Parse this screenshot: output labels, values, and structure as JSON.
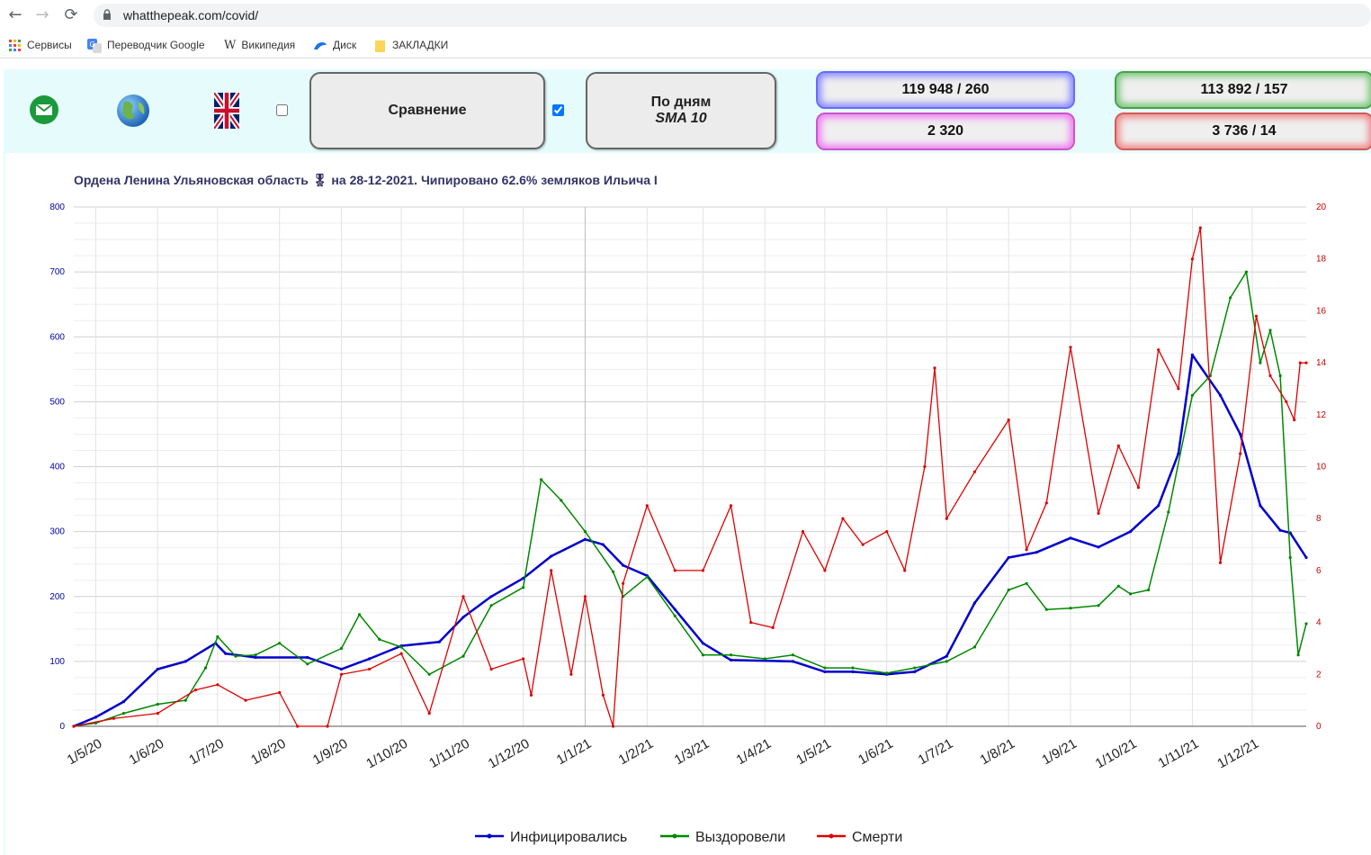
{
  "browser": {
    "url": "whatthepeak.com/covid/",
    "bookmarks": [
      {
        "label": "Сервисы",
        "icon": "apps-grid-icon"
      },
      {
        "label": "Переводчик Google",
        "icon": "google-translate-icon"
      },
      {
        "label": "Википедия",
        "icon": "wikipedia-icon"
      },
      {
        "label": "Диск",
        "icon": "disk-icon"
      },
      {
        "label": "ЗАКЛАДКИ",
        "icon": "folder-icon"
      }
    ]
  },
  "header": {
    "icons": [
      "mail-icon",
      "globe-icon",
      "uk-flag-icon"
    ],
    "compare_checkbox_checked": false,
    "compare_button": "Сравнение",
    "daily_checkbox_checked": true,
    "daily_button_line1": "По дням",
    "daily_button_line2": "SMA 10",
    "stats": {
      "infected": "119 948 / 260",
      "recovered": "113 892 / 157",
      "active": "2 320",
      "deaths": "3 736 / 14"
    },
    "colors": {
      "panel_bg": "#e6fcfc",
      "infected": "#0000cc",
      "recovered": "#008800",
      "deaths": "#dd0000"
    }
  },
  "chart_data": {
    "type": "line",
    "title": "Ордена Ленина Ульяновская область 🎖 на 28-12-2021. Чипировано 62.6% земляков Ильича I",
    "x_range": [
      "2020-04-20",
      "2021-12-28"
    ],
    "x_ticks": [
      "1/5/20",
      "1/6/20",
      "1/7/20",
      "1/8/20",
      "1/9/20",
      "1/10/20",
      "1/11/20",
      "1/12/20",
      "1/1/21",
      "1/2/21",
      "1/3/21",
      "1/4/21",
      "1/5/21",
      "1/6/21",
      "1/7/21",
      "1/8/21",
      "1/9/21",
      "1/10/21",
      "1/11/21",
      "1/12/21"
    ],
    "y_left": {
      "range": [
        0,
        800
      ],
      "ticks": [
        0,
        100,
        200,
        300,
        400,
        500,
        600,
        700,
        800
      ]
    },
    "y_right": {
      "range": [
        0,
        20
      ],
      "ticks": [
        0,
        2,
        4,
        6,
        8,
        10,
        12,
        14,
        16,
        18,
        20
      ]
    },
    "grid": true,
    "legend_position": "bottom",
    "series": [
      {
        "name": "Инфицировались",
        "axis": "left",
        "color": "#0000cc",
        "points": [
          [
            "2020-04-20",
            0
          ],
          [
            "2020-05-01",
            14
          ],
          [
            "2020-05-15",
            38
          ],
          [
            "2020-06-01",
            88
          ],
          [
            "2020-06-15",
            100
          ],
          [
            "2020-06-30",
            128
          ],
          [
            "2020-07-05",
            112
          ],
          [
            "2020-07-20",
            106
          ],
          [
            "2020-08-15",
            106
          ],
          [
            "2020-09-01",
            88
          ],
          [
            "2020-09-15",
            104
          ],
          [
            "2020-10-01",
            124
          ],
          [
            "2020-10-20",
            130
          ],
          [
            "2020-11-01",
            168
          ],
          [
            "2020-11-15",
            200
          ],
          [
            "2020-12-01",
            228
          ],
          [
            "2020-12-15",
            262
          ],
          [
            "2021-01-01",
            288
          ],
          [
            "2021-01-10",
            280
          ],
          [
            "2021-01-20",
            248
          ],
          [
            "2021-02-01",
            232
          ],
          [
            "2021-02-15",
            180
          ],
          [
            "2021-03-01",
            128
          ],
          [
            "2021-03-15",
            102
          ],
          [
            "2021-04-15",
            100
          ],
          [
            "2021-05-01",
            84
          ],
          [
            "2021-05-15",
            84
          ],
          [
            "2021-06-01",
            80
          ],
          [
            "2021-06-15",
            84
          ],
          [
            "2021-07-01",
            108
          ],
          [
            "2021-07-15",
            190
          ],
          [
            "2021-08-01",
            260
          ],
          [
            "2021-08-15",
            268
          ],
          [
            "2021-09-01",
            290
          ],
          [
            "2021-09-15",
            276
          ],
          [
            "2021-10-01",
            300
          ],
          [
            "2021-10-15",
            340
          ],
          [
            "2021-10-25",
            420
          ],
          [
            "2021-11-01",
            572
          ],
          [
            "2021-11-15",
            510
          ],
          [
            "2021-11-25",
            450
          ],
          [
            "2021-12-05",
            340
          ],
          [
            "2021-12-15",
            302
          ],
          [
            "2021-12-20",
            298
          ],
          [
            "2021-12-28",
            260
          ]
        ]
      },
      {
        "name": "Выздоровели",
        "axis": "left",
        "color": "#008800",
        "points": [
          [
            "2020-04-20",
            0
          ],
          [
            "2020-05-01",
            5
          ],
          [
            "2020-05-15",
            20
          ],
          [
            "2020-06-01",
            34
          ],
          [
            "2020-06-15",
            40
          ],
          [
            "2020-06-25",
            90
          ],
          [
            "2020-07-01",
            138
          ],
          [
            "2020-07-10",
            108
          ],
          [
            "2020-07-20",
            110
          ],
          [
            "2020-08-01",
            128
          ],
          [
            "2020-08-15",
            96
          ],
          [
            "2020-09-01",
            120
          ],
          [
            "2020-09-10",
            172
          ],
          [
            "2020-09-20",
            134
          ],
          [
            "2020-10-01",
            122
          ],
          [
            "2020-10-15",
            80
          ],
          [
            "2020-11-01",
            108
          ],
          [
            "2020-11-15",
            186
          ],
          [
            "2020-12-01",
            214
          ],
          [
            "2020-12-10",
            380
          ],
          [
            "2020-12-20",
            348
          ],
          [
            "2021-01-01",
            300
          ],
          [
            "2021-01-15",
            238
          ],
          [
            "2021-01-20",
            200
          ],
          [
            "2021-02-01",
            230
          ],
          [
            "2021-02-15",
            170
          ],
          [
            "2021-03-01",
            110
          ],
          [
            "2021-03-15",
            110
          ],
          [
            "2021-04-01",
            104
          ],
          [
            "2021-04-15",
            110
          ],
          [
            "2021-05-01",
            90
          ],
          [
            "2021-05-15",
            90
          ],
          [
            "2021-06-01",
            82
          ],
          [
            "2021-06-15",
            90
          ],
          [
            "2021-07-01",
            100
          ],
          [
            "2021-07-15",
            122
          ],
          [
            "2021-08-01",
            210
          ],
          [
            "2021-08-10",
            220
          ],
          [
            "2021-08-20",
            180
          ],
          [
            "2021-09-01",
            182
          ],
          [
            "2021-09-15",
            186
          ],
          [
            "2021-09-25",
            216
          ],
          [
            "2021-10-01",
            204
          ],
          [
            "2021-10-10",
            210
          ],
          [
            "2021-10-20",
            330
          ],
          [
            "2021-11-01",
            510
          ],
          [
            "2021-11-10",
            540
          ],
          [
            "2021-11-20",
            660
          ],
          [
            "2021-11-28",
            700
          ],
          [
            "2021-12-05",
            560
          ],
          [
            "2021-12-10",
            610
          ],
          [
            "2021-12-15",
            540
          ],
          [
            "2021-12-20",
            260
          ],
          [
            "2021-12-24",
            110
          ],
          [
            "2021-12-28",
            158
          ]
        ]
      },
      {
        "name": "Смерти",
        "axis": "right",
        "color": "#dd0000",
        "points": [
          [
            "2020-04-20",
            0
          ],
          [
            "2020-05-10",
            0.3
          ],
          [
            "2020-06-01",
            0.5
          ],
          [
            "2020-06-20",
            1.4
          ],
          [
            "2020-07-01",
            1.6
          ],
          [
            "2020-07-15",
            1.0
          ],
          [
            "2020-08-01",
            1.3
          ],
          [
            "2020-08-10",
            0
          ],
          [
            "2020-08-25",
            0
          ],
          [
            "2020-09-01",
            2.0
          ],
          [
            "2020-09-15",
            2.2
          ],
          [
            "2020-10-01",
            2.8
          ],
          [
            "2020-10-15",
            0.5
          ],
          [
            "2020-11-01",
            5.0
          ],
          [
            "2020-11-15",
            2.2
          ],
          [
            "2020-12-01",
            2.6
          ],
          [
            "2020-12-05",
            1.2
          ],
          [
            "2020-12-15",
            6.0
          ],
          [
            "2020-12-25",
            2.0
          ],
          [
            "2021-01-01",
            5.0
          ],
          [
            "2021-01-10",
            1.2
          ],
          [
            "2021-01-15",
            0
          ],
          [
            "2021-01-20",
            5.5
          ],
          [
            "2021-02-01",
            8.5
          ],
          [
            "2021-02-15",
            6.0
          ],
          [
            "2021-03-01",
            6.0
          ],
          [
            "2021-03-15",
            8.5
          ],
          [
            "2021-03-25",
            4.0
          ],
          [
            "2021-04-05",
            3.8
          ],
          [
            "2021-04-20",
            7.5
          ],
          [
            "2021-05-01",
            6.0
          ],
          [
            "2021-05-10",
            8.0
          ],
          [
            "2021-05-20",
            7.0
          ],
          [
            "2021-06-01",
            7.5
          ],
          [
            "2021-06-10",
            6.0
          ],
          [
            "2021-06-20",
            10.0
          ],
          [
            "2021-06-25",
            13.8
          ],
          [
            "2021-07-01",
            8.0
          ],
          [
            "2021-07-15",
            9.8
          ],
          [
            "2021-08-01",
            11.8
          ],
          [
            "2021-08-10",
            6.8
          ],
          [
            "2021-08-20",
            8.6
          ],
          [
            "2021-09-01",
            14.6
          ],
          [
            "2021-09-15",
            8.2
          ],
          [
            "2021-09-25",
            10.8
          ],
          [
            "2021-10-05",
            9.2
          ],
          [
            "2021-10-15",
            14.5
          ],
          [
            "2021-10-25",
            13.0
          ],
          [
            "2021-11-01",
            18.0
          ],
          [
            "2021-11-05",
            19.2
          ],
          [
            "2021-11-15",
            6.3
          ],
          [
            "2021-11-25",
            10.5
          ],
          [
            "2021-12-03",
            15.8
          ],
          [
            "2021-12-10",
            13.5
          ],
          [
            "2021-12-18",
            12.5
          ],
          [
            "2021-12-22",
            11.8
          ],
          [
            "2021-12-25",
            14.0
          ],
          [
            "2021-12-28",
            14.0
          ]
        ]
      }
    ]
  }
}
